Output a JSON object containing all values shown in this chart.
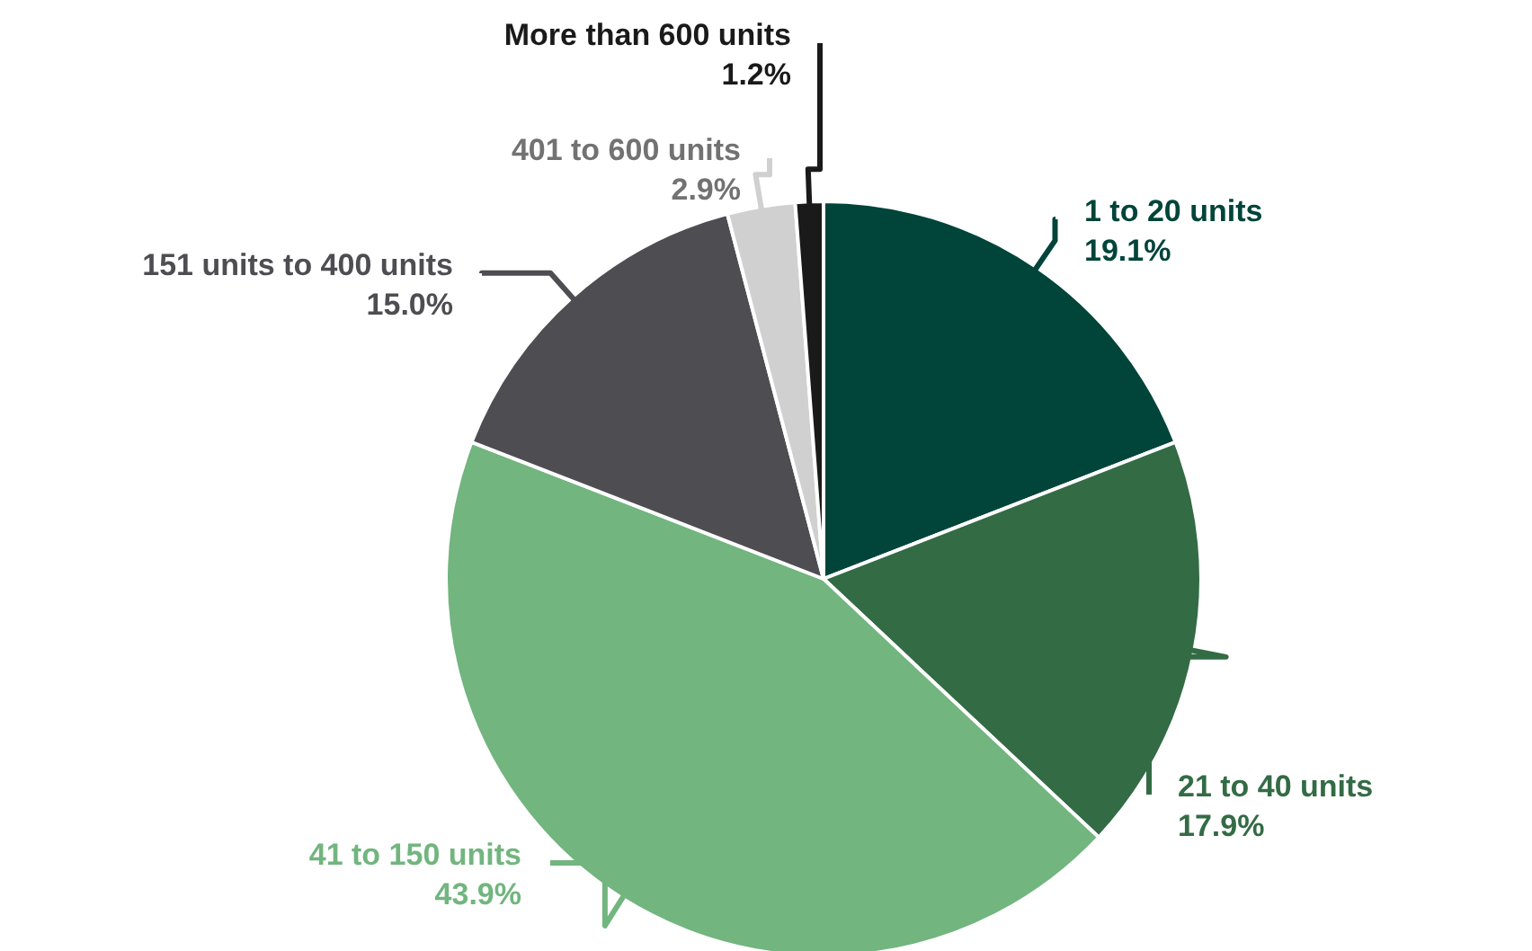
{
  "chart_data": {
    "type": "pie",
    "categories": [
      "1 to 20 units",
      "21 to 40 units",
      "41 to 150 units",
      "151 units to 400 units",
      "401 to 600 units",
      "More than 600 units"
    ],
    "values": [
      19.1,
      17.9,
      43.9,
      15.0,
      2.9,
      1.2
    ],
    "value_labels": [
      "19.1%",
      "17.9%",
      "43.9%",
      "15.0%",
      "2.9%",
      "1.2%"
    ],
    "colors": [
      "#00443a",
      "#336b45",
      "#72b57f",
      "#4d4d52",
      "#d0d0d0",
      "#1a1a1a"
    ]
  }
}
